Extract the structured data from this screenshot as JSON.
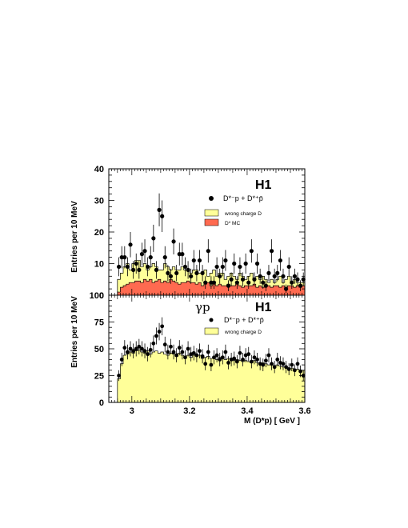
{
  "chart_data": [
    {
      "type": "histogram",
      "panel": "top",
      "experiment_label": "H1",
      "ylabel": "Entries per 10 MeV",
      "xlim": [
        2.92,
        3.6
      ],
      "ylim": [
        0,
        40
      ],
      "yticks": [
        0,
        10,
        20,
        30,
        40
      ],
      "legend": {
        "data_label": "D*⁻p + D*⁺p̄",
        "entries": [
          "wrong charge D",
          "D* MC"
        ]
      },
      "bin_edges_start": 2.95,
      "bin_width": 0.01,
      "colors": {
        "wrong_charge": "#ffff99",
        "mc": "#ff6a50"
      },
      "series": [
        {
          "name": "D*⁻p + D*⁺p̄",
          "x": [
            2.955,
            2.965,
            2.975,
            2.985,
            2.995,
            3.005,
            3.015,
            3.025,
            3.035,
            3.045,
            3.055,
            3.065,
            3.075,
            3.085,
            3.095,
            3.105,
            3.115,
            3.125,
            3.135,
            3.145,
            3.155,
            3.165,
            3.175,
            3.185,
            3.195,
            3.205,
            3.215,
            3.225,
            3.235,
            3.245,
            3.255,
            3.265,
            3.275,
            3.285,
            3.295,
            3.305,
            3.315,
            3.325,
            3.335,
            3.345,
            3.355,
            3.365,
            3.375,
            3.385,
            3.395,
            3.405,
            3.415,
            3.425,
            3.435,
            3.445,
            3.455,
            3.465,
            3.475,
            3.485,
            3.495,
            3.505,
            3.515,
            3.525,
            3.535,
            3.545,
            3.555,
            3.565,
            3.575,
            3.585,
            3.595
          ],
          "y": [
            9,
            12,
            12,
            9,
            16,
            8,
            10,
            8,
            13,
            14,
            9,
            12,
            18,
            8,
            27,
            25,
            12,
            7,
            6,
            17,
            7,
            13,
            13,
            9,
            8,
            6,
            11,
            7,
            11,
            7,
            4,
            14,
            4,
            4,
            9,
            6,
            9,
            11,
            3,
            5,
            10,
            4,
            9,
            5,
            10,
            4,
            14,
            5,
            10,
            6,
            4,
            3,
            7,
            14,
            6,
            7,
            11,
            6,
            2,
            9,
            4,
            6,
            5,
            3,
            5
          ],
          "yerr": [
            3,
            3.5,
            3.5,
            3,
            4,
            2.8,
            3.2,
            2.8,
            3.6,
            3.7,
            3,
            3.5,
            4.3,
            2.8,
            5.2,
            5,
            3.5,
            2.6,
            2.4,
            4.1,
            2.6,
            3.6,
            3.6,
            3,
            2.8,
            2.4,
            3.3,
            2.6,
            3.3,
            2.6,
            2,
            3.7,
            2,
            2,
            3,
            2.4,
            3,
            3.3,
            1.7,
            2.2,
            3.2,
            2,
            3,
            2.2,
            3.2,
            2,
            3.7,
            2.2,
            3.2,
            2.4,
            2,
            1.7,
            2.6,
            3.7,
            2.4,
            2.6,
            3.3,
            2.4,
            1.4,
            3,
            2,
            2.4,
            2.2,
            1.7,
            2.2
          ]
        },
        {
          "name": "wrong charge D",
          "values": [
            5,
            7,
            9,
            10,
            8,
            10,
            11,
            11,
            9,
            10,
            8,
            9,
            10,
            9,
            8,
            8,
            10,
            9,
            8,
            9,
            8,
            8,
            9,
            8,
            8,
            7,
            8,
            8,
            7,
            7,
            8,
            6,
            7,
            8,
            6,
            7,
            7,
            5,
            6,
            7,
            6,
            5,
            7,
            6,
            5,
            6,
            7,
            5,
            6,
            5,
            6,
            5,
            4,
            5,
            4,
            5,
            6,
            4,
            5,
            6,
            4,
            5,
            4,
            4,
            4
          ]
        },
        {
          "name": "D* MC",
          "values": [
            1,
            2.5,
            3,
            3.5,
            4,
            4,
            4.5,
            4.5,
            4,
            5,
            4.5,
            5,
            4,
            4.5,
            5,
            4,
            4.5,
            4,
            5,
            4.5,
            4,
            3.5,
            4,
            4,
            4.5,
            4,
            4,
            3.5,
            4,
            3,
            3.5,
            4,
            3,
            3.5,
            3,
            3.5,
            3,
            3,
            3.5,
            3,
            3,
            3.5,
            3,
            2.5,
            3,
            3,
            3,
            3.5,
            2.5,
            3,
            2.5,
            3,
            3,
            2.5,
            3,
            3,
            2.5,
            3,
            2.5,
            3,
            3,
            2.5,
            3,
            2.5,
            3
          ]
        }
      ]
    },
    {
      "type": "histogram",
      "panel": "bottom",
      "experiment_label": "H1",
      "process_label": "γp",
      "ylabel": "Entries per 10 MeV",
      "xlabel": "M (D*p) [ GeV ]",
      "xlim": [
        2.92,
        3.6
      ],
      "ylim": [
        0,
        100
      ],
      "yticks": [
        0,
        25,
        50,
        75,
        100
      ],
      "xticks": [
        3,
        3.2,
        3.4,
        3.6
      ],
      "xtick_labels": [
        "3",
        "3.2",
        "3.4",
        "3.6"
      ],
      "legend": {
        "data_label": "D*⁻p + D*⁺p̄",
        "entries": [
          "wrong charge D"
        ]
      },
      "bin_edges_start": 2.95,
      "bin_width": 0.01,
      "colors": {
        "wrong_charge": "#ffff99"
      },
      "series": [
        {
          "name": "D*⁻p + D*⁺p̄",
          "x": [
            2.955,
            2.965,
            2.975,
            2.985,
            2.995,
            3.005,
            3.015,
            3.025,
            3.035,
            3.045,
            3.055,
            3.065,
            3.075,
            3.085,
            3.095,
            3.105,
            3.115,
            3.125,
            3.135,
            3.145,
            3.155,
            3.165,
            3.175,
            3.185,
            3.195,
            3.205,
            3.215,
            3.225,
            3.235,
            3.245,
            3.255,
            3.265,
            3.275,
            3.285,
            3.295,
            3.305,
            3.315,
            3.325,
            3.335,
            3.345,
            3.355,
            3.365,
            3.375,
            3.385,
            3.395,
            3.405,
            3.415,
            3.425,
            3.435,
            3.445,
            3.455,
            3.465,
            3.475,
            3.485,
            3.495,
            3.505,
            3.515,
            3.525,
            3.535,
            3.545,
            3.555,
            3.565,
            3.575,
            3.585,
            3.595
          ],
          "y": [
            25,
            40,
            51,
            47,
            50,
            48,
            50,
            52,
            50,
            48,
            45,
            49,
            55,
            62,
            66,
            71,
            54,
            47,
            52,
            47,
            44,
            51,
            47,
            42,
            50,
            45,
            46,
            44,
            48,
            43,
            36,
            47,
            35,
            42,
            44,
            40,
            42,
            47,
            37,
            40,
            41,
            38,
            46,
            40,
            44,
            45,
            38,
            42,
            40,
            36,
            35,
            39,
            44,
            36,
            33,
            40,
            37,
            36,
            33,
            31,
            35,
            30,
            36,
            29,
            25
          ],
          "yerr": [
            5,
            6.3,
            7.1,
            6.9,
            7.1,
            6.9,
            7.1,
            7.2,
            7.1,
            6.9,
            6.7,
            7,
            7.4,
            7.9,
            8.1,
            8.4,
            7.3,
            6.9,
            7.2,
            6.9,
            6.6,
            7.1,
            6.9,
            6.5,
            7.1,
            6.7,
            6.8,
            6.6,
            6.9,
            6.6,
            6,
            6.9,
            5.9,
            6.5,
            6.6,
            6.3,
            6.5,
            6.9,
            6.1,
            6.3,
            6.4,
            6.2,
            6.8,
            6.3,
            6.6,
            6.7,
            6.2,
            6.5,
            6.3,
            6,
            5.9,
            6.2,
            6.6,
            6,
            5.7,
            6.3,
            6.1,
            6,
            5.7,
            5.6,
            5.9,
            5.5,
            6,
            5.4,
            5
          ]
        },
        {
          "name": "wrong charge D",
          "values": [
            22,
            36,
            44,
            45,
            47,
            46,
            48,
            49,
            47,
            46,
            48,
            45,
            47,
            48,
            46,
            47,
            45,
            44,
            46,
            45,
            43,
            46,
            44,
            43,
            44,
            42,
            44,
            43,
            44,
            41,
            42,
            43,
            41,
            42,
            40,
            42,
            41,
            40,
            41,
            40,
            39,
            40,
            39,
            38,
            39,
            38,
            37,
            39,
            37,
            36,
            37,
            36,
            35,
            36,
            34,
            35,
            34,
            33,
            33,
            32,
            32,
            31,
            31,
            30,
            30
          ]
        }
      ]
    }
  ]
}
